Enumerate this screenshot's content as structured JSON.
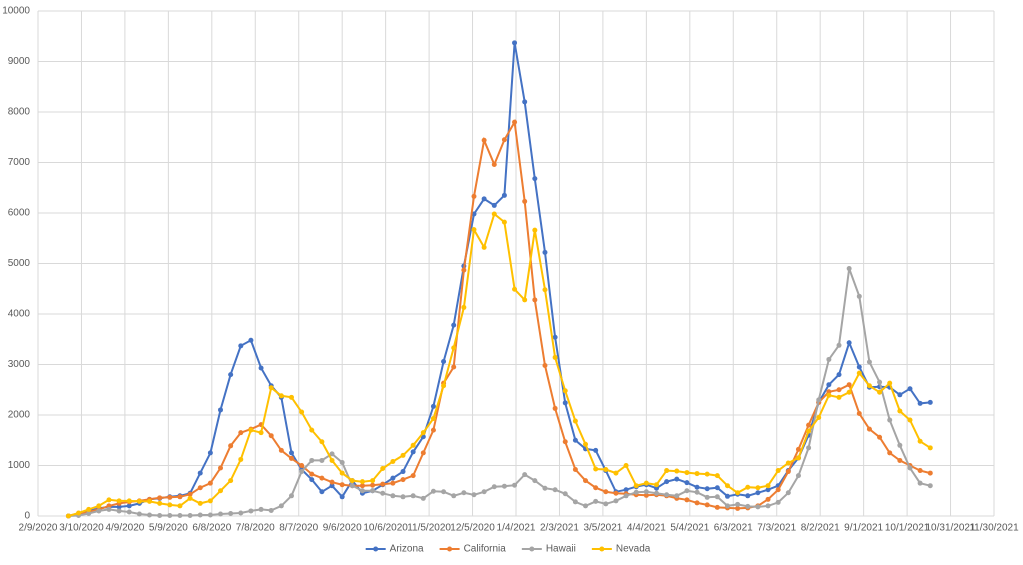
{
  "chart_data": {
    "type": "line",
    "x": [
      "3/1/2020",
      "3/8/2020",
      "3/15/2020",
      "3/22/2020",
      "3/29/2020",
      "4/5/2020",
      "4/12/2020",
      "4/19/2020",
      "4/26/2020",
      "5/3/2020",
      "5/10/2020",
      "5/17/2020",
      "5/24/2020",
      "5/31/2020",
      "6/7/2020",
      "6/14/2020",
      "6/21/2020",
      "6/28/2020",
      "7/5/2020",
      "7/12/2020",
      "7/19/2020",
      "7/26/2020",
      "8/2/2020",
      "8/9/2020",
      "8/16/2020",
      "8/23/2020",
      "8/30/2020",
      "9/6/2020",
      "9/13/2020",
      "9/20/2020",
      "9/27/2020",
      "10/4/2020",
      "10/11/2020",
      "10/18/2020",
      "10/25/2020",
      "11/1/2020",
      "11/8/2020",
      "11/15/2020",
      "11/22/2020",
      "11/29/2020",
      "12/6/2020",
      "12/13/2020",
      "12/20/2020",
      "12/27/2020",
      "1/3/2021",
      "1/10/2021",
      "1/17/2021",
      "1/24/2021",
      "1/31/2021",
      "2/7/2021",
      "2/14/2021",
      "2/21/2021",
      "2/28/2021",
      "3/7/2021",
      "3/14/2021",
      "3/21/2021",
      "3/28/2021",
      "4/4/2021",
      "4/11/2021",
      "4/18/2021",
      "4/25/2021",
      "5/2/2021",
      "5/9/2021",
      "5/16/2021",
      "5/23/2021",
      "5/30/2021",
      "6/6/2021",
      "6/13/2021",
      "6/20/2021",
      "6/27/2021",
      "7/4/2021",
      "7/11/2021",
      "7/18/2021",
      "7/25/2021",
      "8/1/2021",
      "8/8/2021",
      "8/15/2021",
      "8/22/2021",
      "8/29/2021",
      "9/5/2021",
      "9/12/2021",
      "9/19/2021",
      "9/26/2021",
      "10/3/2021",
      "10/10/2021",
      "10/17/2021"
    ],
    "series": [
      {
        "name": "Arizona",
        "color": "#4472c4",
        "values": [
          0,
          50,
          100,
          150,
          180,
          180,
          200,
          250,
          330,
          350,
          380,
          400,
          450,
          850,
          1250,
          2100,
          2800,
          3370,
          3480,
          2930,
          2580,
          2350,
          1250,
          920,
          720,
          480,
          600,
          380,
          700,
          450,
          500,
          620,
          750,
          880,
          1270,
          1570,
          2170,
          3060,
          3780,
          4950,
          5980,
          6280,
          6150,
          6350,
          9370,
          8200,
          6680,
          5220,
          3540,
          2240,
          1500,
          1330,
          1300,
          900,
          480,
          520,
          580,
          620,
          550,
          680,
          730,
          660,
          570,
          540,
          560,
          390,
          430,
          400,
          460,
          520,
          600,
          900,
          1150,
          1600,
          2250,
          2600,
          2800,
          3430,
          2950,
          2550,
          2560,
          2550,
          2400,
          2520,
          2230,
          2250
        ]
      },
      {
        "name": "California",
        "color": "#ed7d31",
        "values": [
          0,
          30,
          80,
          130,
          200,
          250,
          280,
          300,
          330,
          360,
          370,
          380,
          430,
          560,
          650,
          950,
          1390,
          1650,
          1720,
          1810,
          1590,
          1300,
          1140,
          1000,
          830,
          750,
          670,
          620,
          600,
          600,
          610,
          630,
          650,
          720,
          800,
          1250,
          1700,
          2630,
          2950,
          4870,
          6330,
          7440,
          6960,
          7450,
          7800,
          6230,
          4280,
          2980,
          2130,
          1470,
          920,
          700,
          560,
          480,
          450,
          440,
          420,
          410,
          420,
          400,
          350,
          320,
          260,
          220,
          170,
          160,
          150,
          160,
          200,
          330,
          520,
          880,
          1320,
          1800,
          2250,
          2460,
          2500,
          2600,
          2030,
          1720,
          1560,
          1250,
          1100,
          1000,
          900,
          850
        ]
      },
      {
        "name": "Hawaii",
        "color": "#a5a5a5",
        "values": [
          0,
          10,
          50,
          100,
          130,
          100,
          80,
          40,
          20,
          10,
          10,
          10,
          10,
          20,
          20,
          40,
          50,
          60,
          100,
          130,
          110,
          200,
          400,
          880,
          1100,
          1100,
          1230,
          1060,
          600,
          500,
          500,
          450,
          400,
          380,
          400,
          350,
          490,
          480,
          400,
          460,
          420,
          480,
          580,
          590,
          610,
          820,
          700,
          550,
          520,
          440,
          280,
          200,
          290,
          240,
          300,
          400,
          470,
          480,
          450,
          420,
          400,
          500,
          470,
          370,
          380,
          200,
          230,
          190,
          180,
          200,
          270,
          460,
          800,
          1350,
          2300,
          3100,
          3380,
          4900,
          4350,
          3050,
          2650,
          1900,
          1400,
          950,
          650,
          600
        ]
      },
      {
        "name": "Nevada",
        "color": "#ffc000",
        "values": [
          0,
          60,
          130,
          200,
          320,
          300,
          300,
          290,
          290,
          250,
          220,
          200,
          350,
          250,
          300,
          500,
          700,
          1120,
          1700,
          1650,
          2540,
          2380,
          2350,
          2060,
          1700,
          1470,
          1100,
          850,
          700,
          680,
          700,
          940,
          1080,
          1200,
          1400,
          1650,
          1930,
          2580,
          3330,
          4130,
          5670,
          5320,
          5980,
          5820,
          4490,
          4280,
          5660,
          4480,
          3140,
          2480,
          1880,
          1420,
          930,
          920,
          850,
          1000,
          600,
          650,
          620,
          900,
          890,
          860,
          840,
          830,
          800,
          600,
          460,
          570,
          560,
          600,
          900,
          1050,
          1150,
          1680,
          1950,
          2390,
          2350,
          2450,
          2830,
          2580,
          2450,
          2630,
          2080,
          1900,
          1480,
          1350
        ]
      }
    ],
    "xlim": [
      "2/9/2020",
      "11/30/2021"
    ],
    "xticks": [
      "2/9/2020",
      "3/10/2020",
      "4/9/2020",
      "5/9/2020",
      "6/8/2020",
      "7/8/2020",
      "8/7/2020",
      "9/6/2020",
      "10/6/2020",
      "11/5/2020",
      "12/5/2020",
      "1/4/2021",
      "2/3/2021",
      "3/5/2021",
      "4/4/2021",
      "5/4/2021",
      "6/3/2021",
      "7/3/2021",
      "8/2/2021",
      "9/1/2021",
      "10/1/2021",
      "10/31/2021",
      "11/30/2021"
    ],
    "ylim": [
      0,
      10000
    ],
    "yticks": [
      0,
      1000,
      2000,
      3000,
      4000,
      5000,
      6000,
      7000,
      8000,
      9000,
      10000
    ],
    "grid": true,
    "legend": "bottom"
  }
}
